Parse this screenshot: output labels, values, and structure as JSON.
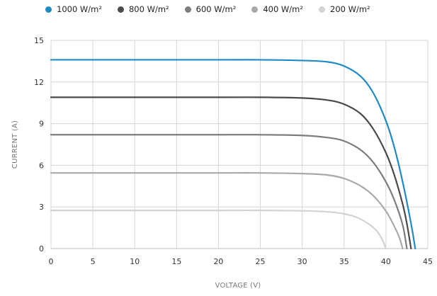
{
  "legend": [
    {
      "label": "1000 W/m²",
      "color": "#1f8ac4"
    },
    {
      "label": "800 W/m²",
      "color": "#4a4a4a"
    },
    {
      "label": "600 W/m²",
      "color": "#7d7d7d"
    },
    {
      "label": "400 W/m²",
      "color": "#a9a9a9"
    },
    {
      "label": "200 W/m²",
      "color": "#d3d3d3"
    }
  ],
  "chart_data": {
    "type": "line",
    "title": "",
    "xlabel": "VOLTAGE (V)",
    "ylabel": "CURRENT (A)",
    "xlim": [
      0,
      45
    ],
    "ylim": [
      0,
      15
    ],
    "xticks": [
      "0",
      "5",
      "10",
      "15",
      "20",
      "25",
      "30",
      "35",
      "40",
      "45"
    ],
    "yticks": [
      "0",
      "3",
      "6",
      "9",
      "12",
      "15"
    ],
    "grid": true,
    "legend_position": "top",
    "series": [
      {
        "name": "1000 W/m²",
        "color": "#1f8ac4",
        "isc": 13.6,
        "voc": 43.5,
        "points": [
          [
            0,
            13.6
          ],
          [
            10,
            13.6
          ],
          [
            20,
            13.6
          ],
          [
            25,
            13.6
          ],
          [
            30,
            13.55
          ],
          [
            33,
            13.45
          ],
          [
            35,
            13.15
          ],
          [
            37,
            12.4
          ],
          [
            38.5,
            11.2
          ],
          [
            40,
            9.2
          ],
          [
            41,
            7.3
          ],
          [
            42,
            4.8
          ],
          [
            43,
            1.8
          ],
          [
            43.5,
            0
          ]
        ]
      },
      {
        "name": "800 W/m²",
        "color": "#4a4a4a",
        "isc": 10.9,
        "voc": 43.0,
        "points": [
          [
            0,
            10.9
          ],
          [
            10,
            10.9
          ],
          [
            20,
            10.9
          ],
          [
            25,
            10.9
          ],
          [
            30,
            10.85
          ],
          [
            33,
            10.7
          ],
          [
            35,
            10.4
          ],
          [
            37,
            9.7
          ],
          [
            38.5,
            8.6
          ],
          [
            40,
            6.9
          ],
          [
            41,
            5.3
          ],
          [
            42,
            3.2
          ],
          [
            42.5,
            1.8
          ],
          [
            43,
            0
          ]
        ]
      },
      {
        "name": "600 W/m²",
        "color": "#7d7d7d",
        "isc": 8.2,
        "voc": 42.5,
        "points": [
          [
            0,
            8.2
          ],
          [
            10,
            8.2
          ],
          [
            20,
            8.2
          ],
          [
            25,
            8.2
          ],
          [
            30,
            8.15
          ],
          [
            33,
            8.0
          ],
          [
            35,
            7.75
          ],
          [
            37,
            7.1
          ],
          [
            38.5,
            6.2
          ],
          [
            40,
            4.8
          ],
          [
            41,
            3.5
          ],
          [
            42,
            1.7
          ],
          [
            42.5,
            0
          ]
        ]
      },
      {
        "name": "400 W/m²",
        "color": "#a9a9a9",
        "isc": 5.5,
        "voc": 42.0,
        "points": [
          [
            0,
            5.45
          ],
          [
            10,
            5.45
          ],
          [
            20,
            5.45
          ],
          [
            25,
            5.45
          ],
          [
            30,
            5.4
          ],
          [
            33,
            5.3
          ],
          [
            35,
            5.05
          ],
          [
            37,
            4.5
          ],
          [
            38.5,
            3.8
          ],
          [
            40,
            2.7
          ],
          [
            41,
            1.6
          ],
          [
            41.6,
            0.8
          ],
          [
            42,
            0
          ]
        ]
      },
      {
        "name": "200 W/m²",
        "color": "#d3d3d3",
        "isc": 2.75,
        "voc": 40.0,
        "points": [
          [
            0,
            2.75
          ],
          [
            10,
            2.75
          ],
          [
            20,
            2.75
          ],
          [
            25,
            2.75
          ],
          [
            30,
            2.72
          ],
          [
            33,
            2.65
          ],
          [
            35,
            2.5
          ],
          [
            36.5,
            2.25
          ],
          [
            38,
            1.75
          ],
          [
            39,
            1.2
          ],
          [
            39.6,
            0.6
          ],
          [
            40,
            0
          ]
        ]
      }
    ]
  }
}
